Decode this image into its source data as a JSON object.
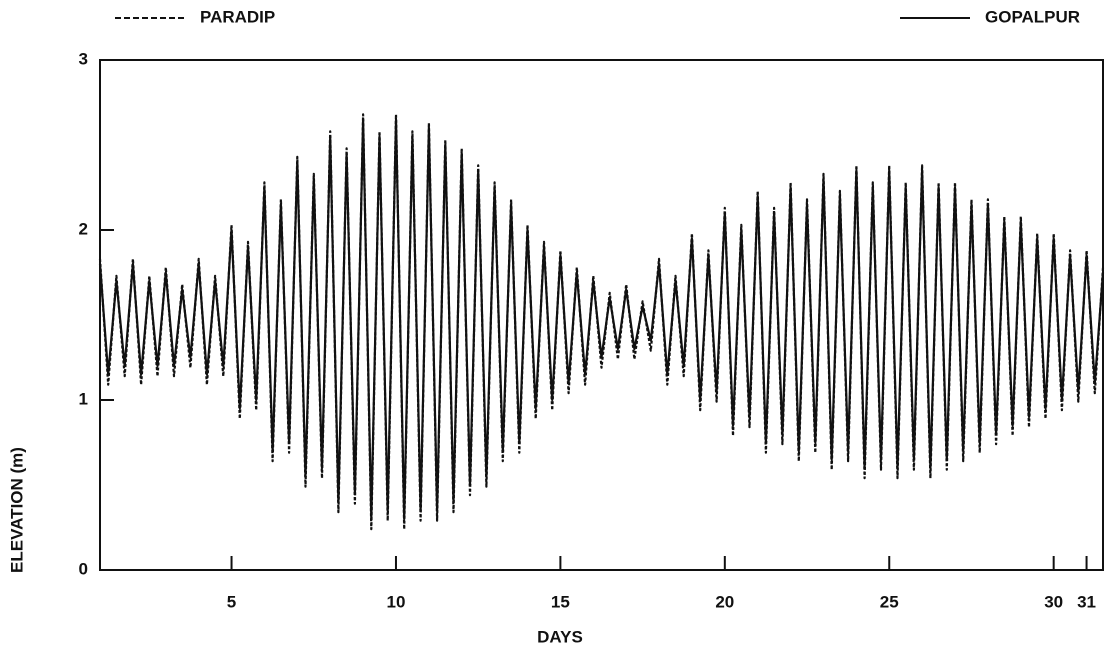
{
  "chart_data": {
    "type": "line",
    "x_label": "DAYS",
    "y_label": "ELEVATION (m)",
    "xlim": [
      1,
      31.5
    ],
    "ylim": [
      0,
      3
    ],
    "xticks": [
      5,
      10,
      15,
      20,
      25,
      30,
      31
    ],
    "yticks": [
      0,
      1,
      2,
      3
    ],
    "x": [
      1,
      1.25,
      1.5,
      1.75,
      2,
      2.25,
      2.5,
      2.75,
      3,
      3.25,
      3.5,
      3.75,
      4,
      4.25,
      4.5,
      4.75,
      5,
      5.25,
      5.5,
      5.75,
      6,
      6.25,
      6.5,
      6.75,
      7,
      7.25,
      7.5,
      7.75,
      8,
      8.25,
      8.5,
      8.75,
      9,
      9.25,
      9.5,
      9.75,
      10,
      10.25,
      10.5,
      10.75,
      11,
      11.25,
      11.5,
      11.75,
      12,
      12.25,
      12.5,
      12.75,
      13,
      13.25,
      13.5,
      13.75,
      14,
      14.25,
      14.5,
      14.75,
      15,
      15.25,
      15.5,
      15.75,
      16,
      16.25,
      16.5,
      16.75,
      17,
      17.25,
      17.5,
      17.75,
      18,
      18.25,
      18.5,
      18.75,
      19,
      19.25,
      19.5,
      19.75,
      20,
      20.25,
      20.5,
      20.75,
      21,
      21.25,
      21.5,
      21.75,
      22,
      22.25,
      22.5,
      22.75,
      23,
      23.25,
      23.5,
      23.75,
      24,
      24.25,
      24.5,
      24.75,
      25,
      25.25,
      25.5,
      25.75,
      26,
      26.25,
      26.5,
      26.75,
      27,
      27.25,
      27.5,
      27.75,
      28,
      28.25,
      28.5,
      28.75,
      29,
      29.25,
      29.5,
      29.75,
      30,
      30.25,
      30.5,
      30.75,
      31,
      31.25,
      31.5
    ],
    "series": [
      {
        "name": "PARADIP",
        "color": "#111111",
        "linestyle": "dashed",
        "values": [
          1.83,
          1.09,
          1.73,
          1.14,
          1.83,
          1.09,
          1.73,
          1.14,
          1.78,
          1.14,
          1.68,
          1.19,
          1.83,
          1.09,
          1.73,
          1.14,
          2.03,
          0.89,
          1.93,
          0.94,
          2.28,
          0.64,
          2.18,
          0.69,
          2.43,
          0.49,
          2.33,
          0.54,
          2.58,
          0.34,
          2.48,
          0.39,
          2.68,
          0.24,
          2.58,
          0.29,
          2.68,
          0.24,
          2.58,
          0.29,
          2.63,
          0.29,
          2.53,
          0.34,
          2.48,
          0.44,
          2.38,
          0.49,
          2.28,
          0.64,
          2.18,
          0.69,
          2.03,
          0.89,
          1.93,
          0.94,
          1.88,
          1.04,
          1.78,
          1.09,
          1.73,
          1.19,
          1.63,
          1.24,
          1.68,
          1.24,
          1.58,
          1.29,
          1.83,
          1.09,
          1.73,
          1.14,
          1.98,
          0.94,
          1.88,
          0.99,
          2.13,
          0.79,
          2.03,
          0.84,
          2.23,
          0.69,
          2.13,
          0.74,
          2.28,
          0.64,
          2.18,
          0.69,
          2.33,
          0.59,
          2.23,
          0.64,
          2.38,
          0.54,
          2.28,
          0.59,
          2.38,
          0.54,
          2.28,
          0.59,
          2.38,
          0.54,
          2.28,
          0.59,
          2.28,
          0.64,
          2.18,
          0.69,
          2.18,
          0.74,
          2.08,
          0.79,
          2.08,
          0.84,
          1.98,
          0.89,
          1.98,
          0.94,
          1.88,
          0.99,
          1.88,
          1.04,
          1.78
        ]
      },
      {
        "name": "GOPALPUR",
        "color": "#111111",
        "linestyle": "solid",
        "values": [
          1.8,
          1.15,
          1.7,
          1.2,
          1.8,
          1.15,
          1.7,
          1.2,
          1.75,
          1.2,
          1.65,
          1.25,
          1.8,
          1.15,
          1.7,
          1.2,
          2.0,
          0.95,
          1.9,
          1.0,
          2.25,
          0.7,
          2.15,
          0.75,
          2.4,
          0.55,
          2.3,
          0.6,
          2.55,
          0.4,
          2.45,
          0.45,
          2.65,
          0.3,
          2.55,
          0.35,
          2.65,
          0.3,
          2.55,
          0.35,
          2.6,
          0.35,
          2.5,
          0.4,
          2.45,
          0.5,
          2.35,
          0.55,
          2.25,
          0.7,
          2.15,
          0.75,
          2.0,
          0.95,
          1.9,
          1.0,
          1.85,
          1.1,
          1.75,
          1.15,
          1.7,
          1.25,
          1.6,
          1.3,
          1.65,
          1.3,
          1.55,
          1.35,
          1.8,
          1.15,
          1.7,
          1.2,
          1.95,
          1.0,
          1.85,
          1.05,
          2.1,
          0.85,
          2.0,
          0.9,
          2.2,
          0.75,
          2.1,
          0.8,
          2.25,
          0.7,
          2.15,
          0.75,
          2.3,
          0.65,
          2.2,
          0.7,
          2.35,
          0.6,
          2.25,
          0.65,
          2.35,
          0.6,
          2.25,
          0.65,
          2.35,
          0.6,
          2.25,
          0.65,
          2.25,
          0.7,
          2.15,
          0.75,
          2.15,
          0.8,
          2.05,
          0.85,
          2.05,
          0.9,
          1.95,
          0.95,
          1.95,
          1.0,
          1.85,
          1.05,
          1.85,
          1.1,
          1.75
        ]
      }
    ]
  }
}
